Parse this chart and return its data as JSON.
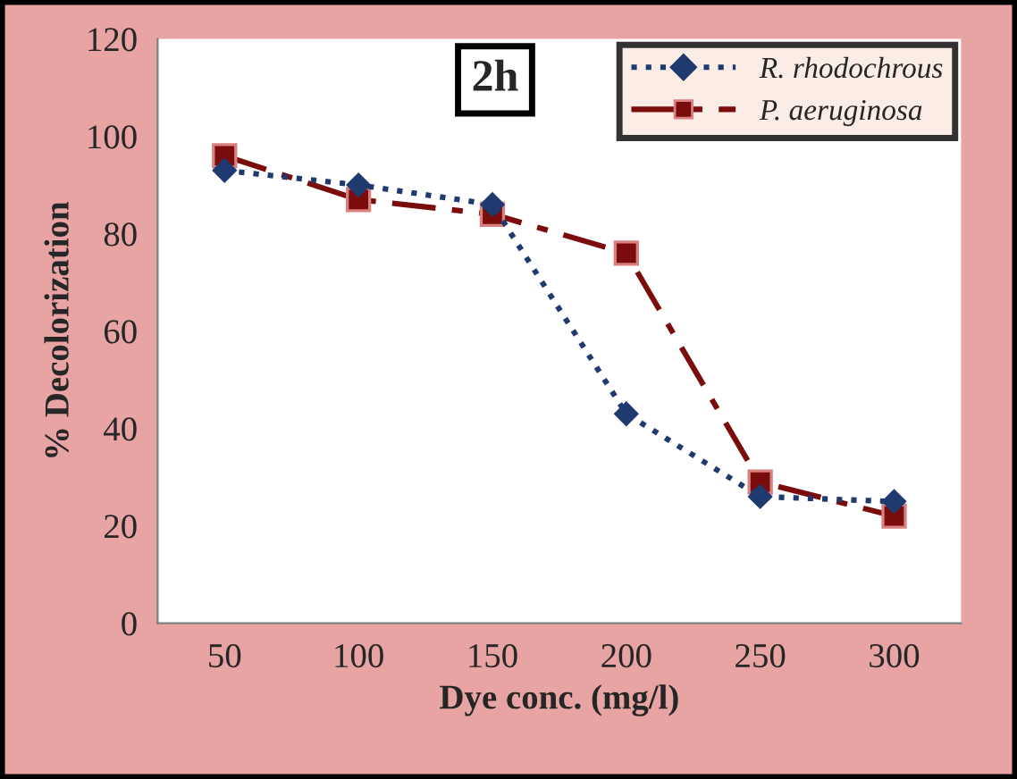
{
  "chart_data": {
    "type": "line",
    "xlabel": "Dye conc. (mg/l)",
    "ylabel": "% Decolorization",
    "annotations": [
      "2h"
    ],
    "categories": [
      "50",
      "100",
      "150",
      "200",
      "250",
      "300"
    ],
    "series": [
      {
        "name": "R. rhodochrous",
        "color": "#1f3a6e",
        "marker": "diamond",
        "line_style": "dotted",
        "values": [
          93,
          90,
          86,
          43,
          26,
          25
        ]
      },
      {
        "name": "P. aeruginosa",
        "color": "#7a0c0c",
        "marker": "square",
        "line_style": "dashed",
        "values": [
          96,
          87,
          84,
          76,
          29,
          22
        ]
      }
    ],
    "ylim": [
      0,
      120
    ],
    "yticks": [
      0,
      20,
      40,
      60,
      80,
      100,
      120
    ],
    "grid": false,
    "legend": "top right"
  }
}
